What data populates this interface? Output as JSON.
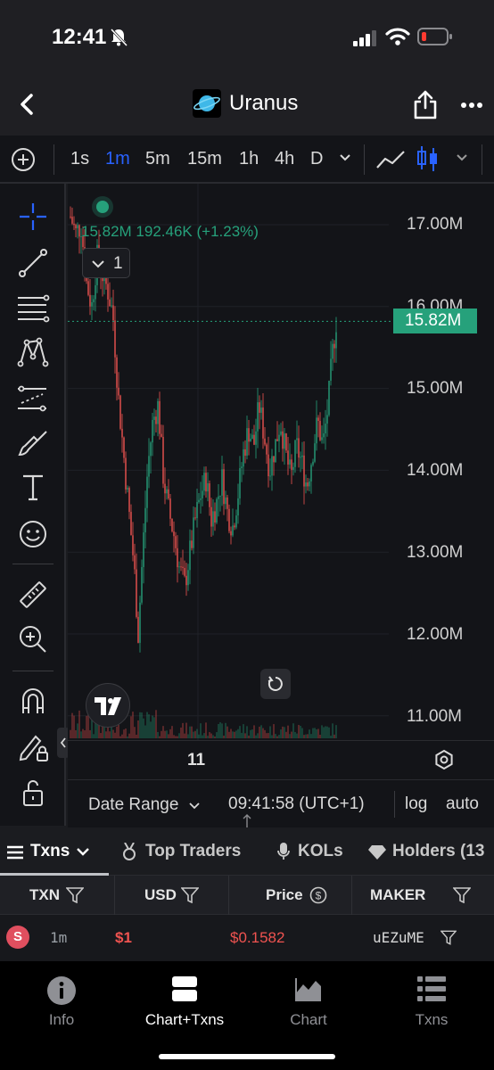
{
  "status_bar": {
    "time": "12:41"
  },
  "header": {
    "title": "Uranus"
  },
  "toolbar": {
    "intervals": [
      "1s",
      "1m",
      "5m",
      "15m",
      "1h",
      "4h",
      "D"
    ],
    "active_interval": "1m"
  },
  "chart": {
    "legend": {
      "values": "15.82M  192.46K (+1.23%)",
      "collapse_count": "1"
    },
    "current_price_label": "15.82M",
    "time_label": "11",
    "colors": {
      "up": "#26a17b",
      "down": "#ef5350",
      "accent": "#2962ff"
    }
  },
  "chart_data": {
    "type": "candlestick",
    "y_axis_ticks": [
      "17.00M",
      "16.00M",
      "15.00M",
      "14.00M",
      "13.00M",
      "12.00M",
      "11.00M"
    ],
    "x_axis_ticks": [
      "11"
    ],
    "current_value": "15.82M",
    "change": "192.46K (+1.23%)",
    "ylim": [
      10.8,
      17.4
    ],
    "close_path": [
      {
        "x": 0.0,
        "y": 17.1
      },
      {
        "x": 0.02,
        "y": 16.9
      },
      {
        "x": 0.04,
        "y": 17.0
      },
      {
        "x": 0.06,
        "y": 16.3
      },
      {
        "x": 0.08,
        "y": 16.0
      },
      {
        "x": 0.1,
        "y": 16.6
      },
      {
        "x": 0.12,
        "y": 16.4
      },
      {
        "x": 0.14,
        "y": 16.2
      },
      {
        "x": 0.16,
        "y": 15.9
      },
      {
        "x": 0.18,
        "y": 14.9
      },
      {
        "x": 0.2,
        "y": 14.2
      },
      {
        "x": 0.22,
        "y": 13.5
      },
      {
        "x": 0.24,
        "y": 12.8
      },
      {
        "x": 0.255,
        "y": 12.0
      },
      {
        "x": 0.27,
        "y": 12.9
      },
      {
        "x": 0.29,
        "y": 14.0
      },
      {
        "x": 0.31,
        "y": 14.6
      },
      {
        "x": 0.33,
        "y": 14.8
      },
      {
        "x": 0.35,
        "y": 13.9
      },
      {
        "x": 0.37,
        "y": 13.5
      },
      {
        "x": 0.39,
        "y": 13.2
      },
      {
        "x": 0.41,
        "y": 12.8
      },
      {
        "x": 0.43,
        "y": 12.6
      },
      {
        "x": 0.45,
        "y": 13.0
      },
      {
        "x": 0.47,
        "y": 13.4
      },
      {
        "x": 0.49,
        "y": 13.7
      },
      {
        "x": 0.51,
        "y": 13.9
      },
      {
        "x": 0.53,
        "y": 13.4
      },
      {
        "x": 0.55,
        "y": 13.6
      },
      {
        "x": 0.57,
        "y": 13.9
      },
      {
        "x": 0.59,
        "y": 13.5
      },
      {
        "x": 0.61,
        "y": 13.3
      },
      {
        "x": 0.63,
        "y": 13.7
      },
      {
        "x": 0.65,
        "y": 14.2
      },
      {
        "x": 0.67,
        "y": 14.5
      },
      {
        "x": 0.69,
        "y": 14.3
      },
      {
        "x": 0.71,
        "y": 14.8
      },
      {
        "x": 0.73,
        "y": 14.4
      },
      {
        "x": 0.75,
        "y": 14.0
      },
      {
        "x": 0.77,
        "y": 14.3
      },
      {
        "x": 0.79,
        "y": 14.6
      },
      {
        "x": 0.81,
        "y": 14.2
      },
      {
        "x": 0.83,
        "y": 13.9
      },
      {
        "x": 0.85,
        "y": 14.3
      },
      {
        "x": 0.87,
        "y": 14.1
      },
      {
        "x": 0.89,
        "y": 13.8
      },
      {
        "x": 0.91,
        "y": 14.2
      },
      {
        "x": 0.93,
        "y": 14.6
      },
      {
        "x": 0.95,
        "y": 14.3
      },
      {
        "x": 0.97,
        "y": 14.8
      },
      {
        "x": 0.985,
        "y": 15.4
      },
      {
        "x": 1.0,
        "y": 15.82
      }
    ]
  },
  "chart_bottom": {
    "date_range": "Date Range",
    "clock": "09:41:58 (UTC+1)",
    "log": "log",
    "auto": "auto"
  },
  "tabs": [
    {
      "label": "Txns"
    },
    {
      "label": "Top Traders"
    },
    {
      "label": "KOLs"
    },
    {
      "label": "Holders (13"
    }
  ],
  "table": {
    "headers": [
      "TXN",
      "USD",
      "Price",
      "MAKER"
    ],
    "rows": [
      {
        "side": "S",
        "age": "1m",
        "usd": "$1",
        "price": "$0.1582",
        "maker": "uEZuME"
      }
    ]
  },
  "bottom_nav": [
    {
      "label": "Info"
    },
    {
      "label": "Chart+Txns"
    },
    {
      "label": "Chart"
    },
    {
      "label": "Txns"
    }
  ]
}
